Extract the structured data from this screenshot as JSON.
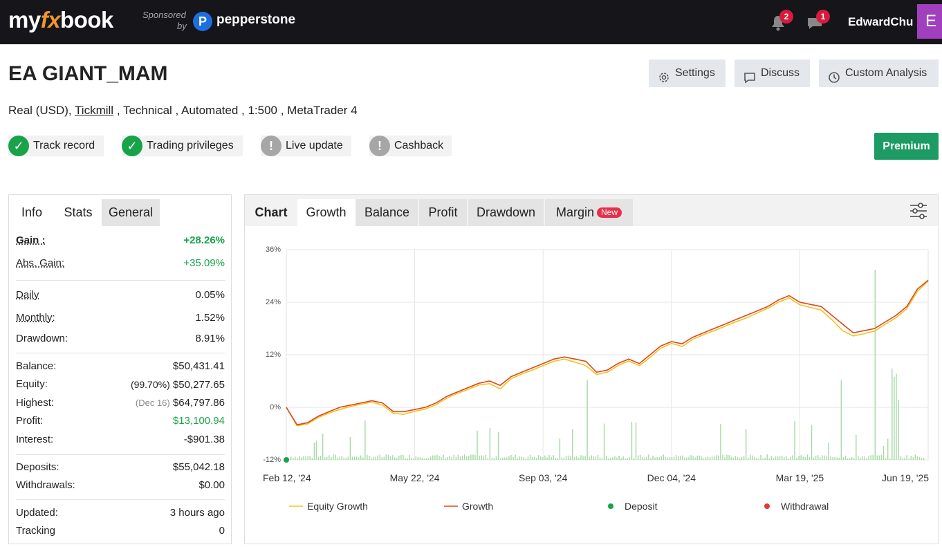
{
  "topbar": {
    "logo_my": "my",
    "logo_fx": "fx",
    "logo_book": "book",
    "sponsored": "Sponsored",
    "by": "by",
    "sponsor_mark": "P",
    "sponsor_name": "pepperstone",
    "notifications_count": "2",
    "messages_count": "1",
    "username": "EdwardChu",
    "avatar_letter": "E"
  },
  "header": {
    "title": "EA GIANT_MAM",
    "subtitle_prefix": "Real (USD),",
    "broker": "Tickmill",
    "subtitle_suffix": ", Technical , Automated , 1:500 , MetaTrader 4",
    "buttons": {
      "settings": "Settings",
      "discuss": "Discuss",
      "custom_analysis": "Custom Analysis"
    },
    "statuses": [
      {
        "label": "Track record",
        "state": "ok"
      },
      {
        "label": "Trading privileges",
        "state": "ok"
      },
      {
        "label": "Live update",
        "state": "warn"
      },
      {
        "label": "Cashback",
        "state": "warn"
      }
    ],
    "premium": "Premium"
  },
  "left_panel": {
    "tabs": [
      "Info",
      "Stats",
      "General"
    ],
    "active_tab": "Stats",
    "gain": {
      "label": "Gain :",
      "value": "+28.26%"
    },
    "abs_gain": {
      "label": "Abs. Gain:",
      "value": "+35.09%"
    },
    "daily": {
      "label": "Daily",
      "value": "0.05%"
    },
    "monthly": {
      "label": "Monthly:",
      "value": "1.52%"
    },
    "drawdown": {
      "label": "Drawdown:",
      "value": "8.91%"
    },
    "balance": {
      "label": "Balance:",
      "value": "$50,431.41"
    },
    "equity": {
      "label": "Equity:",
      "note": "(99.70%)",
      "value": "$50,277.65"
    },
    "highest": {
      "label": "Highest:",
      "note": "(Dec 16)",
      "value": "$64,797.86"
    },
    "profit": {
      "label": "Profit:",
      "value": "$13,100.94"
    },
    "interest": {
      "label": "Interest:",
      "value": "-$901.38"
    },
    "deposits": {
      "label": "Deposits:",
      "value": "$55,042.18"
    },
    "withdrawals": {
      "label": "Withdrawals:",
      "value": "$0.00"
    },
    "updated": {
      "label": "Updated:",
      "value": "3 hours ago"
    },
    "tracking": {
      "label": "Tracking",
      "value": "0"
    }
  },
  "right_panel": {
    "tabs": [
      "Chart",
      "Growth",
      "Balance",
      "Profit",
      "Drawdown",
      "Margin"
    ],
    "active_tab": "Growth",
    "new_badge": "New"
  },
  "chart_data": {
    "type": "line",
    "y_ticks": [
      "36%",
      "24%",
      "12%",
      "0%",
      "-12%"
    ],
    "ylim": [
      -12,
      36
    ],
    "x_ticks": [
      "Feb 12, '24",
      "May 22, '24",
      "Sep 03, '24",
      "Dec 04, '24",
      "Mar 19, '25",
      "Jun 19, '25"
    ],
    "legend": [
      "Equity Growth",
      "Growth",
      "Deposit",
      "Withdrawal"
    ],
    "colors": {
      "growth": "#e0451b",
      "equity": "#f2c31b",
      "deposit": "#16a34a",
      "withdrawal": "#e03a3a",
      "volume": "#a8dba8"
    },
    "series": [
      {
        "name": "Growth",
        "x": [
          0,
          1,
          2,
          3,
          4,
          5,
          6,
          7,
          8,
          9,
          10,
          11,
          12,
          13,
          14,
          15,
          16,
          17,
          18,
          19,
          20,
          21,
          22,
          23,
          24,
          25,
          26,
          27,
          28,
          29,
          30,
          31,
          32,
          33,
          34,
          35,
          36,
          37,
          38,
          39,
          40,
          41,
          42,
          43,
          44,
          45,
          46,
          47,
          48,
          49,
          50,
          51,
          52,
          53,
          54,
          55,
          56,
          57,
          58,
          59,
          60
        ],
        "y": [
          0,
          -4,
          -3.5,
          -2,
          -1,
          0,
          0.5,
          1,
          1.5,
          1,
          -1,
          -1,
          -0.5,
          0,
          1,
          2.5,
          3.5,
          4.5,
          5.5,
          6,
          5,
          7,
          8,
          9,
          10,
          11,
          11.5,
          11,
          10.5,
          8,
          8.5,
          10,
          11,
          10,
          12,
          14,
          15,
          14.5,
          16,
          17,
          18,
          19,
          20,
          21,
          22,
          23,
          24.5,
          25.5,
          24,
          23.5,
          23,
          21,
          19,
          17,
          17.5,
          18,
          19.5,
          21,
          23,
          27,
          29
        ]
      },
      {
        "name": "Equity Growth",
        "x": [
          0,
          1,
          2,
          3,
          4,
          5,
          6,
          7,
          8,
          9,
          10,
          11,
          12,
          13,
          14,
          15,
          16,
          17,
          18,
          19,
          20,
          21,
          22,
          23,
          24,
          25,
          26,
          27,
          28,
          29,
          30,
          31,
          32,
          33,
          34,
          35,
          36,
          37,
          38,
          39,
          40,
          41,
          42,
          43,
          44,
          45,
          46,
          47,
          48,
          49,
          50,
          51,
          52,
          53,
          54,
          55,
          56,
          57,
          58,
          59,
          60
        ],
        "y": [
          0,
          -4.2,
          -3.8,
          -2.3,
          -1.3,
          -0.5,
          0.2,
          0.7,
          1.2,
          0.5,
          -1.4,
          -1.6,
          -0.9,
          -0.4,
          0.6,
          2.1,
          3.2,
          4.1,
          5.1,
          5.4,
          4.2,
          6.5,
          7.6,
          8.5,
          9.5,
          10.5,
          11,
          10.3,
          9.5,
          7.5,
          8,
          9.5,
          10.6,
          9.5,
          11.4,
          13.5,
          14.6,
          13.9,
          15.5,
          16.6,
          17.5,
          18.5,
          19.5,
          20.4,
          21.5,
          22.6,
          24,
          25,
          23.4,
          22.8,
          22.2,
          20,
          17.5,
          16.3,
          16.8,
          17.4,
          19,
          20.5,
          22.5,
          26.5,
          28.8
        ]
      }
    ]
  }
}
